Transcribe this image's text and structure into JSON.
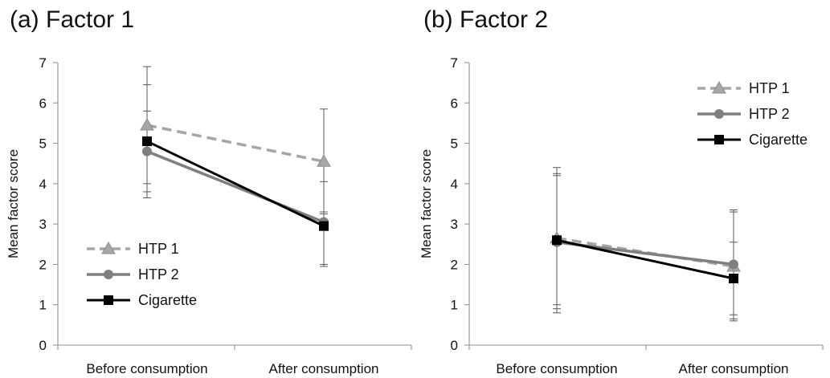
{
  "chart_data": [
    {
      "type": "line",
      "title": "(a) Factor 1",
      "xlabel": "",
      "ylabel": "Mean factor score",
      "ylim": [
        0,
        7
      ],
      "yticks": [
        "0",
        "1",
        "2",
        "3",
        "4",
        "5",
        "6",
        "7"
      ],
      "categories": [
        "Before consumption",
        "After consumption"
      ],
      "legend_position": "bottom-left",
      "series": [
        {
          "name": "HTP 1",
          "values": [
            5.45,
            4.55
          ],
          "error_low": [
            3.8,
            3.3
          ],
          "error_high": [
            6.9,
            5.85
          ],
          "color": "#a6a6a6",
          "dash": true,
          "marker": "triangle"
        },
        {
          "name": "HTP 2",
          "values": [
            4.8,
            3.05
          ],
          "error_low": [
            3.65,
            2.0
          ],
          "error_high": [
            6.45,
            4.05
          ],
          "color": "#7f7f7f",
          "dash": false,
          "marker": "circle"
        },
        {
          "name": "Cigarette",
          "values": [
            5.05,
            2.95
          ],
          "error_low": [
            4.0,
            1.95
          ],
          "error_high": [
            5.8,
            3.25
          ],
          "color": "#000000",
          "dash": false,
          "marker": "square"
        }
      ]
    },
    {
      "type": "line",
      "title": "(b) Factor 2",
      "xlabel": "",
      "ylabel": "Mean factor score",
      "ylim": [
        0,
        7
      ],
      "yticks": [
        "0",
        "1",
        "2",
        "3",
        "4",
        "5",
        "6",
        "7"
      ],
      "categories": [
        "Before consumption",
        "After consumption"
      ],
      "legend_position": "top-right",
      "series": [
        {
          "name": "HTP 1",
          "values": [
            2.65,
            1.95
          ],
          "error_low": [
            0.9,
            0.65
          ],
          "error_high": [
            4.4,
            3.35
          ],
          "color": "#a6a6a6",
          "dash": true,
          "marker": "triangle"
        },
        {
          "name": "HTP 2",
          "values": [
            2.55,
            2.0
          ],
          "error_low": [
            0.8,
            0.75
          ],
          "error_high": [
            4.25,
            3.3
          ],
          "color": "#7f7f7f",
          "dash": false,
          "marker": "circle"
        },
        {
          "name": "Cigarette",
          "values": [
            2.6,
            1.65
          ],
          "error_low": [
            1.0,
            0.6
          ],
          "error_high": [
            4.2,
            2.55
          ],
          "color": "#000000",
          "dash": false,
          "marker": "square"
        }
      ]
    }
  ]
}
